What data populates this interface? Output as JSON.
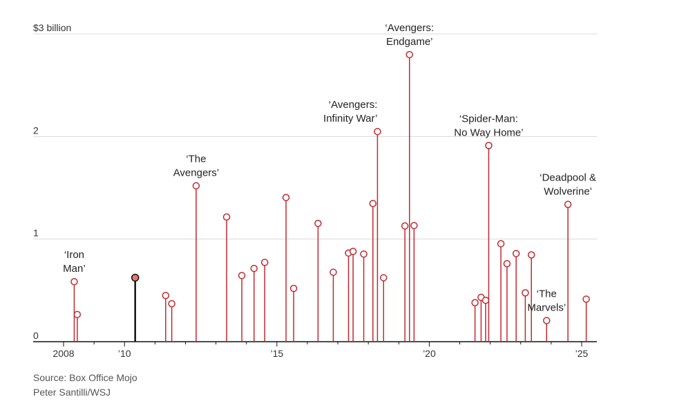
{
  "chart_data": {
    "type": "lollipop",
    "ylim": [
      0,
      3
    ],
    "xlim": [
      2008.0,
      2025.5
    ],
    "y_ticks": [
      {
        "value": 0,
        "label": "0"
      },
      {
        "value": 1,
        "label": "1"
      },
      {
        "value": 2,
        "label": "2"
      },
      {
        "value": 3,
        "label": "$3 billion"
      }
    ],
    "x_ticks": [
      {
        "value": 2008,
        "label": "2008"
      },
      {
        "value": 2010,
        "label": "’10"
      },
      {
        "value": 2015,
        "label": "’15"
      },
      {
        "value": 2020,
        "label": "’20"
      },
      {
        "value": 2025,
        "label": "’25"
      }
    ],
    "colors": {
      "stem": "#c0282f",
      "highlight_stem": "#111111",
      "highlight_fill": "#e8776f",
      "grid": "#d9d9d9",
      "axis": "#111111"
    },
    "points": [
      {
        "x": 2008.35,
        "y": 0.585,
        "label": "‘Iron Man’",
        "lines": [
          "‘Iron",
          "Man’"
        ],
        "anchor": "above"
      },
      {
        "x": 2008.45,
        "y": 0.265
      },
      {
        "x": 2010.35,
        "y": 0.624,
        "highlight": true
      },
      {
        "x": 2011.35,
        "y": 0.45
      },
      {
        "x": 2011.55,
        "y": 0.37
      },
      {
        "x": 2012.35,
        "y": 1.519,
        "label": "‘The Avengers’",
        "lines": [
          "‘The",
          "Avengers’"
        ],
        "anchor": "above"
      },
      {
        "x": 2013.35,
        "y": 1.215
      },
      {
        "x": 2013.85,
        "y": 0.645
      },
      {
        "x": 2014.25,
        "y": 0.714
      },
      {
        "x": 2014.6,
        "y": 0.773
      },
      {
        "x": 2015.3,
        "y": 1.405
      },
      {
        "x": 2015.55,
        "y": 0.519
      },
      {
        "x": 2016.35,
        "y": 1.153
      },
      {
        "x": 2016.85,
        "y": 0.677
      },
      {
        "x": 2017.35,
        "y": 0.864
      },
      {
        "x": 2017.5,
        "y": 0.88
      },
      {
        "x": 2017.85,
        "y": 0.854
      },
      {
        "x": 2018.15,
        "y": 1.347
      },
      {
        "x": 2018.3,
        "y": 2.048,
        "label": "‘Avengers: Infinity War’",
        "lines": [
          "‘Avengers:",
          "Infinity War’"
        ],
        "anchor": "above-left"
      },
      {
        "x": 2018.5,
        "y": 0.623
      },
      {
        "x": 2019.2,
        "y": 1.128
      },
      {
        "x": 2019.35,
        "y": 2.798,
        "label": "‘Avengers: Endgame’",
        "lines": [
          "‘Avengers:",
          "Endgame’"
        ],
        "anchor": "above"
      },
      {
        "x": 2019.5,
        "y": 1.132
      },
      {
        "x": 2021.5,
        "y": 0.38
      },
      {
        "x": 2021.7,
        "y": 0.432
      },
      {
        "x": 2021.85,
        "y": 0.403
      },
      {
        "x": 2021.95,
        "y": 1.912,
        "label": "‘Spider-Man: No Way Home’",
        "lines": [
          "‘Spider-Man:",
          "No Way Home’"
        ],
        "anchor": "above"
      },
      {
        "x": 2022.35,
        "y": 0.955
      },
      {
        "x": 2022.55,
        "y": 0.76
      },
      {
        "x": 2022.85,
        "y": 0.859
      },
      {
        "x": 2023.15,
        "y": 0.476
      },
      {
        "x": 2023.35,
        "y": 0.846
      },
      {
        "x": 2023.85,
        "y": 0.206,
        "label": "‘The Marvels’",
        "lines": [
          "‘The",
          "Marvels’"
        ],
        "anchor": "above"
      },
      {
        "x": 2024.55,
        "y": 1.338,
        "label": "‘Deadpool & Wolverine’",
        "lines": [
          "‘Deadpool &",
          "Wolverine’"
        ],
        "anchor": "above"
      },
      {
        "x": 2025.15,
        "y": 0.415
      }
    ]
  },
  "footer": {
    "source": "Source: Box Office Mojo",
    "credit": "Peter Santilli/WSJ"
  }
}
